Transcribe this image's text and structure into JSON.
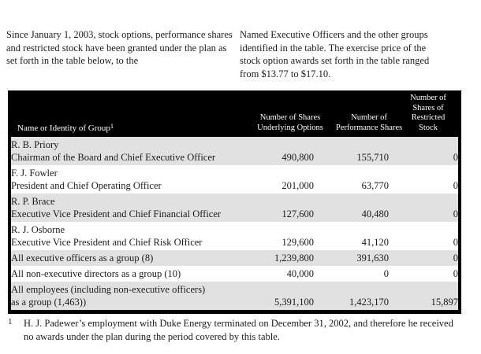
{
  "intro": {
    "left_column": "Since January 1, 2003, stock options, performance shares and restricted stock have been granted under the plan as set forth in the table below, to the",
    "right_column": "Named Executive Officers and the other groups identified in the table. The exercise price of the stock option awards set forth in the table ranged from $13.77 to $17.10."
  },
  "table": {
    "columns": [
      {
        "lines": [
          "Name or Identity of Group"
        ],
        "sup": "1"
      },
      {
        "lines": [
          "Number of Shares",
          "Underlying Options"
        ]
      },
      {
        "lines": [
          "Number of",
          "Performance Shares"
        ]
      },
      {
        "lines": [
          "Number of",
          "Shares of",
          "Restricted",
          "Stock"
        ]
      }
    ],
    "rows": [
      {
        "name": "R. B. Priory",
        "title": "Chairman of the Board and Chief Executive Officer",
        "options": "490,800",
        "performance": "155,710",
        "restricted": "0"
      },
      {
        "name": "F. J. Fowler",
        "title": "President and Chief Operating Officer",
        "options": "201,000",
        "performance": "63,770",
        "restricted": "0"
      },
      {
        "name": "R. P. Brace",
        "title": "Executive Vice President and Chief Financial Officer",
        "options": "127,600",
        "performance": "40,480",
        "restricted": "0"
      },
      {
        "name": "R. J. Osborne",
        "title": "Executive Vice President and Chief Risk Officer",
        "options": "129,600",
        "performance": "41,120",
        "restricted": "0"
      },
      {
        "name": "All executive officers as a group (8)",
        "title": "",
        "options": "1,239,800",
        "performance": "391,630",
        "restricted": "0"
      },
      {
        "name": "All non-executive directors as a group (10)",
        "title": "",
        "options": "40,000",
        "performance": "0",
        "restricted": "0"
      },
      {
        "name": "All employees (including non-executive officers)",
        "title": "as a group (1,463))",
        "options": "5,391,100",
        "performance": "1,423,170",
        "restricted": "15,897"
      }
    ]
  },
  "footnote": {
    "marker": "1",
    "text": "H. J. Padewer’s employment with Duke Energy terminated on December 31, 2002, and therefore he received no awards under the plan during the period covered by this table."
  },
  "colors": {
    "header_bg": "#000000",
    "header_text": "#ffffff",
    "row_alt_bg": "#e1e1e1",
    "row_bg": "#ffffff",
    "text": "#1c1c1c"
  }
}
